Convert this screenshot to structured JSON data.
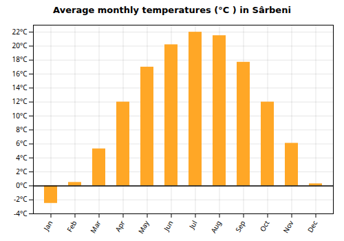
{
  "chart_data": {
    "type": "bar",
    "title": "Average monthly temperatures (°C ) in Sârbeni",
    "categories": [
      "Jan",
      "Feb",
      "Mar",
      "Apr",
      "May",
      "Jun",
      "Jul",
      "Aug",
      "Sep",
      "Oct",
      "Nov",
      "Dec"
    ],
    "values": [
      -2.5,
      0.5,
      5.3,
      12.0,
      17.0,
      20.2,
      22.0,
      21.5,
      17.7,
      12.0,
      6.1,
      0.3
    ],
    "color": "#FFA726",
    "ylim": [
      -4,
      23
    ],
    "yticks": [
      {
        "value": -4,
        "label": "-4°C"
      },
      {
        "value": -2,
        "label": "-2°C"
      },
      {
        "value": 0,
        "label": "0°C"
      },
      {
        "value": 2,
        "label": "2°C"
      },
      {
        "value": 4,
        "label": "4°C"
      },
      {
        "value": 6,
        "label": "6°C"
      },
      {
        "value": 8,
        "label": "8°C"
      },
      {
        "value": 10,
        "label": "10°C"
      },
      {
        "value": 12,
        "label": "12°C"
      },
      {
        "value": 14,
        "label": "14°C"
      },
      {
        "value": 16,
        "label": "16°C"
      },
      {
        "value": 18,
        "label": "18°C"
      },
      {
        "value": 20,
        "label": "20°C"
      },
      {
        "value": 22,
        "label": "22°C"
      }
    ],
    "grid": true
  }
}
